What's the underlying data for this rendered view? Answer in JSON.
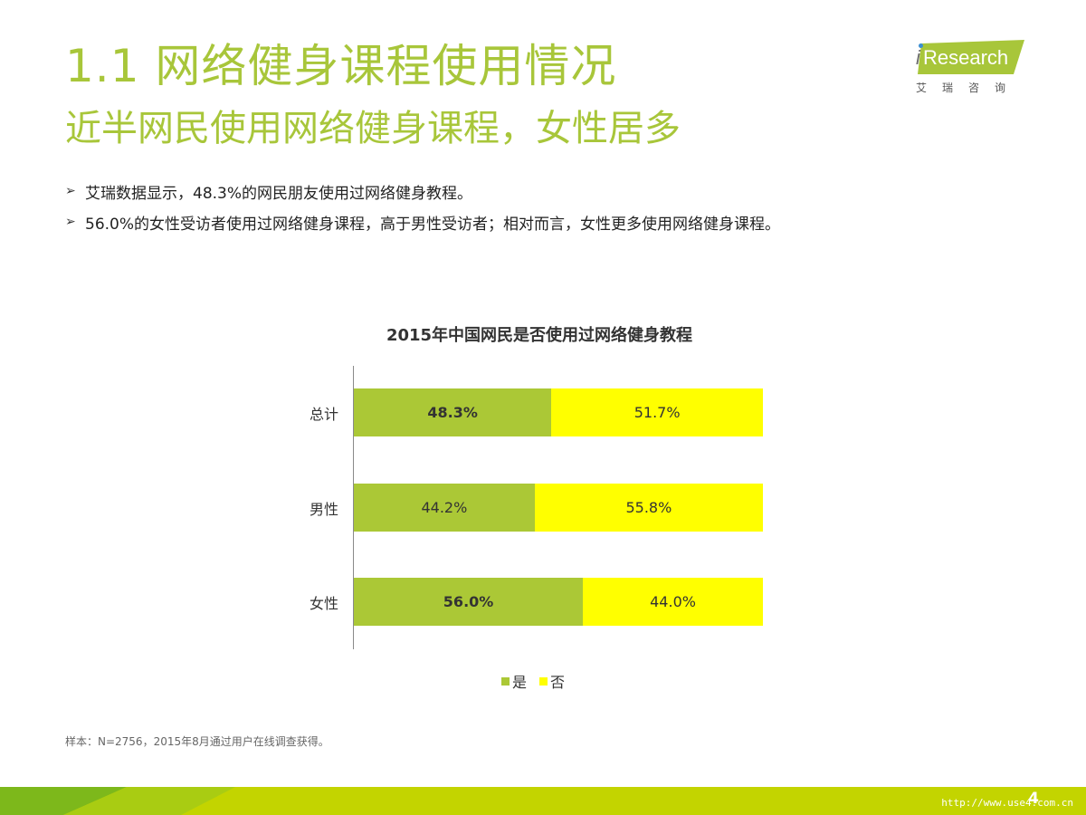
{
  "header": {
    "title": "1.1 网络健身课程使用情况",
    "subtitle": "近半网民使用网络健身课程，女性居多"
  },
  "logo": {
    "brand_i": "i",
    "brand_text": "Research",
    "cn": "艾瑞咨询",
    "accent": "#a8c63a"
  },
  "bullets": [
    "艾瑞数据显示，48.3%的网民朋友使用过网络健身教程。",
    "56.0%的女性受访者使用过网络健身课程，高于男性受访者；相对而言，女性更多使用网络健身课程。"
  ],
  "chart_data": {
    "type": "bar",
    "orientation": "horizontal",
    "stacked": true,
    "title": "2015年中国网民是否使用过网络健身教程",
    "categories": [
      "总计",
      "男性",
      "女性"
    ],
    "series": [
      {
        "name": "是",
        "values": [
          48.3,
          44.2,
          56.0
        ],
        "labels": [
          "48.3%",
          "44.2%",
          "56.0%"
        ],
        "color": "#abc836"
      },
      {
        "name": "否",
        "values": [
          51.7,
          55.8,
          44.0
        ],
        "labels": [
          "51.7%",
          "55.8%",
          "44.0%"
        ],
        "color": "#ffff00"
      }
    ],
    "bold_labels": [
      true,
      false,
      true
    ],
    "xlim": [
      0,
      100
    ],
    "unit": "%",
    "legend": "bottom",
    "grid": false
  },
  "note": "样本：N=2756，2015年8月通过用户在线调查获得。",
  "footer": {
    "page_number": "4",
    "watermark": "http://www.use4.com.cn",
    "colors": [
      "#7db81b",
      "#c8d400"
    ]
  }
}
